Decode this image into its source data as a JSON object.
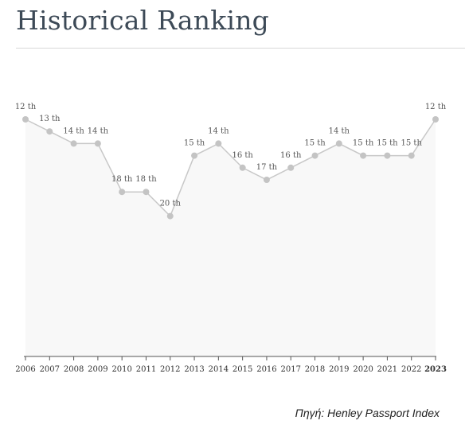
{
  "header": {
    "title": "Historical Ranking"
  },
  "source": "Πηγή: Henley Passport Index",
  "chart_data": {
    "type": "line",
    "title": "Historical Ranking",
    "xlabel": "",
    "ylabel": "",
    "x": [
      "2006",
      "2007",
      "2008",
      "2009",
      "2010",
      "2011",
      "2012",
      "2013",
      "2014",
      "2015",
      "2016",
      "2017",
      "2018",
      "2019",
      "2020",
      "2021",
      "2022",
      "2023"
    ],
    "series": [
      {
        "values": [
          12,
          13,
          14,
          14,
          18,
          18,
          20,
          15,
          14,
          16,
          17,
          16,
          15,
          14,
          15,
          15,
          15,
          12
        ]
      }
    ],
    "rank_suffix": "th",
    "highlight_x": "2023",
    "y_inverted": true,
    "grid": false,
    "colors": {
      "line": "#c8c8c8",
      "point": "#c4c4c4",
      "area": "#f8f8f8",
      "axis": "#555555",
      "label": "#555555"
    }
  }
}
